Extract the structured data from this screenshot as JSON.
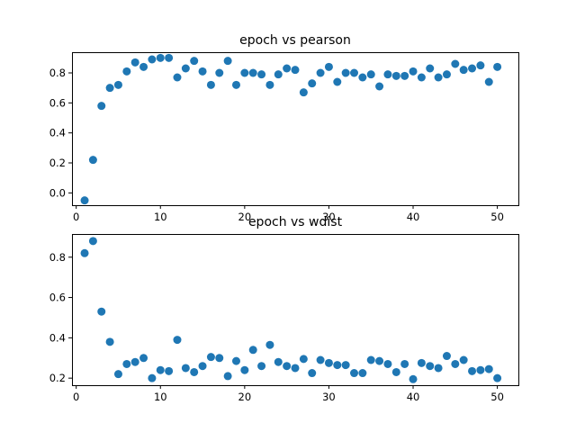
{
  "chart_data": [
    {
      "type": "scatter",
      "title": "epoch vs pearson",
      "xlabel": "",
      "ylabel": "",
      "xlim": [
        -0.5,
        52.5
      ],
      "ylim": [
        -0.082,
        0.938
      ],
      "xticks": [
        0,
        10,
        20,
        30,
        40,
        50
      ],
      "yticks": [
        0.0,
        0.2,
        0.4,
        0.6,
        0.8
      ],
      "ytick_labels": [
        "0.0",
        "0.2",
        "0.4",
        "0.6",
        "0.8"
      ],
      "grid": false,
      "color": "#1f77b4",
      "series": [
        {
          "x": [
            1,
            2,
            3,
            4,
            5,
            6,
            7,
            8,
            9,
            10,
            11,
            12,
            13,
            14,
            15,
            16,
            17,
            18,
            19,
            20,
            21,
            22,
            23,
            24,
            25,
            26,
            27,
            28,
            29,
            30,
            31,
            32,
            33,
            34,
            35,
            36,
            37,
            38,
            39,
            40,
            41,
            42,
            43,
            44,
            45,
            46,
            47,
            48,
            49,
            50
          ],
          "y": [
            -0.05,
            0.22,
            0.58,
            0.7,
            0.72,
            0.81,
            0.87,
            0.84,
            0.89,
            0.9,
            0.9,
            0.77,
            0.83,
            0.88,
            0.81,
            0.72,
            0.8,
            0.88,
            0.72,
            0.8,
            0.8,
            0.79,
            0.72,
            0.79,
            0.83,
            0.82,
            0.67,
            0.73,
            0.8,
            0.84,
            0.74,
            0.8,
            0.8,
            0.77,
            0.79,
            0.71,
            0.79,
            0.78,
            0.78,
            0.81,
            0.77,
            0.83,
            0.77,
            0.79,
            0.86,
            0.82,
            0.83,
            0.85,
            0.74,
            0.84
          ]
        }
      ]
    },
    {
      "type": "scatter",
      "title": "epoch vs wdist",
      "xlabel": "",
      "ylabel": "",
      "xlim": [
        -0.5,
        52.5
      ],
      "ylim": [
        0.165,
        0.915
      ],
      "xticks": [
        0,
        10,
        20,
        30,
        40,
        50
      ],
      "yticks": [
        0.2,
        0.4,
        0.6,
        0.8
      ],
      "ytick_labels": [
        "0.2",
        "0.4",
        "0.6",
        "0.8"
      ],
      "grid": false,
      "color": "#1f77b4",
      "series": [
        {
          "x": [
            1,
            2,
            3,
            4,
            5,
            6,
            7,
            8,
            9,
            10,
            11,
            12,
            13,
            14,
            15,
            16,
            17,
            18,
            19,
            20,
            21,
            22,
            23,
            24,
            25,
            26,
            27,
            28,
            29,
            30,
            31,
            32,
            33,
            34,
            35,
            36,
            37,
            38,
            39,
            40,
            41,
            42,
            43,
            44,
            45,
            46,
            47,
            48,
            49,
            50
          ],
          "y": [
            0.82,
            0.88,
            0.53,
            0.38,
            0.22,
            0.27,
            0.28,
            0.3,
            0.2,
            0.24,
            0.235,
            0.39,
            0.25,
            0.23,
            0.26,
            0.305,
            0.3,
            0.21,
            0.285,
            0.24,
            0.34,
            0.26,
            0.365,
            0.28,
            0.26,
            0.25,
            0.295,
            0.225,
            0.29,
            0.275,
            0.265,
            0.265,
            0.225,
            0.225,
            0.29,
            0.285,
            0.27,
            0.23,
            0.27,
            0.195,
            0.275,
            0.26,
            0.25,
            0.31,
            0.27,
            0.29,
            0.235,
            0.24,
            0.245,
            0.2
          ]
        }
      ]
    }
  ]
}
